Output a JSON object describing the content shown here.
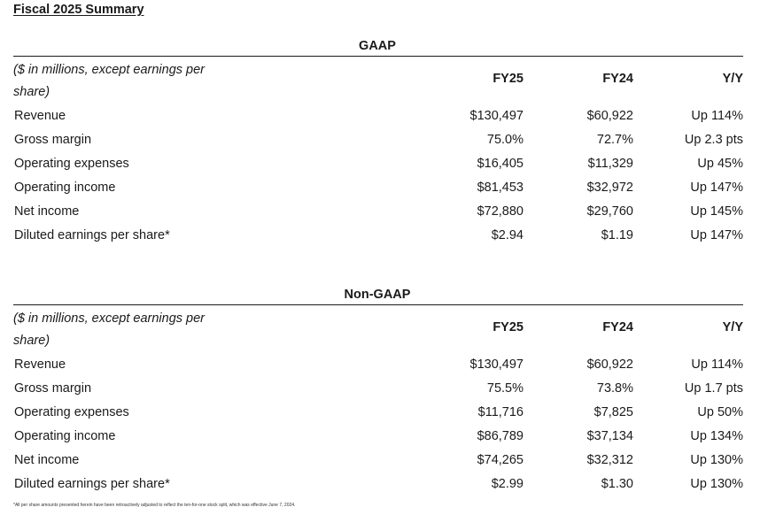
{
  "page_title": "Fiscal 2025 Summary",
  "gaap": {
    "heading": "GAAP",
    "units_label": "($ in millions, except earnings per share)",
    "columns": [
      "FY25",
      "FY24",
      "Y/Y"
    ],
    "rows": [
      {
        "label": "Revenue",
        "fy25": "$130,497",
        "fy24": "$60,922",
        "yoy": "Up 114%"
      },
      {
        "label": "Gross margin",
        "fy25": "75.0%",
        "fy24": "72.7%",
        "yoy": "Up 2.3 pts"
      },
      {
        "label": "Operating expenses",
        "fy25": "$16,405",
        "fy24": "$11,329",
        "yoy": "Up 45%"
      },
      {
        "label": "Operating income",
        "fy25": "$81,453",
        "fy24": "$32,972",
        "yoy": "Up 147%"
      },
      {
        "label": "Net income",
        "fy25": "$72,880",
        "fy24": "$29,760",
        "yoy": "Up 145%"
      },
      {
        "label": "Diluted earnings per share*",
        "fy25": "$2.94",
        "fy24": "$1.19",
        "yoy": "Up 147%"
      }
    ]
  },
  "non_gaap": {
    "heading": "Non-GAAP",
    "units_label": "($ in millions, except earnings per share)",
    "columns": [
      "FY25",
      "FY24",
      "Y/Y"
    ],
    "rows": [
      {
        "label": "Revenue",
        "fy25": "$130,497",
        "fy24": "$60,922",
        "yoy": "Up 114%"
      },
      {
        "label": "Gross margin",
        "fy25": "75.5%",
        "fy24": "73.8%",
        "yoy": "Up 1.7 pts"
      },
      {
        "label": "Operating expenses",
        "fy25": "$11,716",
        "fy24": "$7,825",
        "yoy": "Up 50%"
      },
      {
        "label": "Operating income",
        "fy25": "$86,789",
        "fy24": "$37,134",
        "yoy": "Up 134%"
      },
      {
        "label": "Net income",
        "fy25": "$74,265",
        "fy24": "$32,312",
        "yoy": "Up 130%"
      },
      {
        "label": "Diluted earnings per share*",
        "fy25": "$2.99",
        "fy24": "$1.30",
        "yoy": "Up 130%"
      }
    ]
  },
  "footnote": "*All per share amounts presented herein have been retroactively adjusted to reflect the ten-for-one stock split, which was effective June 7, 2024."
}
